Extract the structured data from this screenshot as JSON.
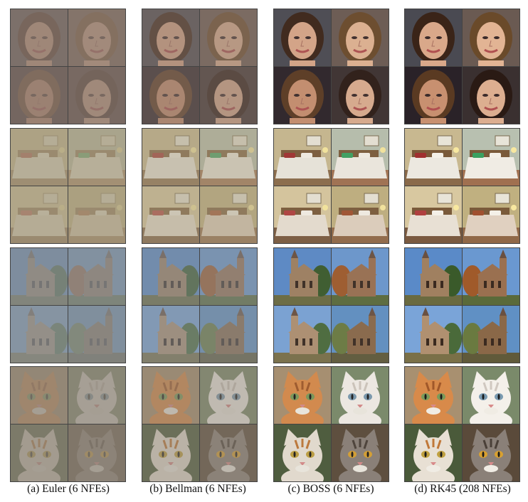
{
  "figure": {
    "columns": [
      {
        "caption": "(a) Euler (6 NFEs)",
        "quality": 0.25
      },
      {
        "caption": "(b) Bellman (6 NFEs)",
        "quality": 0.5
      },
      {
        "caption": "(c) BOSS (6 NFEs)",
        "quality": 0.92
      },
      {
        "caption": "(d) RK45 (208 NFEs)",
        "quality": 1.0
      }
    ],
    "rows": [
      {
        "subject": "faces"
      },
      {
        "subject": "bedrooms"
      },
      {
        "subject": "churches"
      },
      {
        "subject": "cats"
      }
    ]
  }
}
